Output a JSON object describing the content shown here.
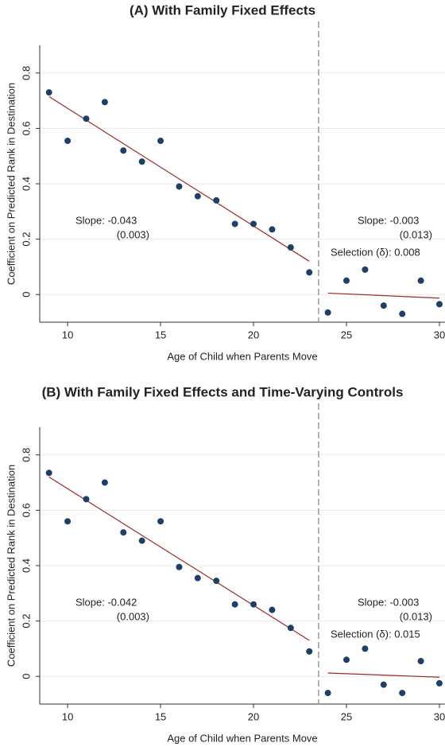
{
  "chart_data": [
    {
      "type": "scatter",
      "title": "(A)  With Family Fixed Effects",
      "xlabel": "Age of Child when Parents Move",
      "ylabel": "Coefficient on Predicted Rank in Destination",
      "x": [
        9,
        10,
        11,
        12,
        13,
        14,
        15,
        16,
        17,
        18,
        19,
        20,
        21,
        22,
        23,
        24,
        25,
        26,
        27,
        28,
        29,
        30
      ],
      "values": [
        0.73,
        0.555,
        0.635,
        0.695,
        0.52,
        0.48,
        0.555,
        0.39,
        0.355,
        0.34,
        0.255,
        0.255,
        0.235,
        0.17,
        0.08,
        -0.065,
        0.05,
        0.09,
        -0.04,
        -0.07,
        0.05,
        -0.035
      ],
      "color": "#1f3f66",
      "fit_lines": [
        {
          "x": [
            9,
            23
          ],
          "values": [
            0.715,
            0.12
          ]
        },
        {
          "x": [
            24,
            30
          ],
          "values": [
            0.005,
            -0.013
          ]
        }
      ],
      "fit_color": "#9b2a2a",
      "vline": 23.5,
      "annotations": [
        "Slope:  -0.043",
        "(0.003)",
        "Slope:  -0.003",
        "(0.013)",
        "Selection (δ): 0.008"
      ],
      "xlim": [
        8.5,
        30.3
      ],
      "ylim": [
        -0.1,
        0.9
      ],
      "xticks": [
        10,
        15,
        20,
        25,
        30
      ],
      "yticks": [
        0,
        0.2,
        0.4,
        0.6,
        0.8
      ],
      "grid": true
    },
    {
      "type": "scatter",
      "title": "(B)  With Family Fixed Effects and Time-Varying Controls",
      "xlabel": "Age of Child when Parents Move",
      "ylabel": "Coefficient on Predicted Rank in Destination",
      "x": [
        9,
        10,
        11,
        12,
        13,
        14,
        15,
        16,
        17,
        18,
        19,
        20,
        21,
        22,
        23,
        24,
        25,
        26,
        27,
        28,
        29,
        30
      ],
      "values": [
        0.735,
        0.56,
        0.64,
        0.7,
        0.52,
        0.49,
        0.56,
        0.395,
        0.355,
        0.345,
        0.26,
        0.26,
        0.24,
        0.175,
        0.09,
        -0.06,
        0.06,
        0.1,
        -0.03,
        -0.06,
        0.055,
        -0.025
      ],
      "color": "#1f3f66",
      "fit_lines": [
        {
          "x": [
            9,
            23
          ],
          "values": [
            0.72,
            0.13
          ]
        },
        {
          "x": [
            24,
            30
          ],
          "values": [
            0.012,
            -0.003
          ]
        }
      ],
      "fit_color": "#9b2a2a",
      "vline": 23.5,
      "annotations": [
        "Slope:  -0.042",
        "(0.003)",
        "Slope:  -0.003",
        "(0.013)",
        "Selection (δ): 0.015"
      ],
      "xlim": [
        8.5,
        30.3
      ],
      "ylim": [
        -0.1,
        0.9
      ],
      "xticks": [
        10,
        15,
        20,
        25,
        30
      ],
      "yticks": [
        0,
        0.2,
        0.4,
        0.6,
        0.8
      ],
      "grid": true
    }
  ]
}
